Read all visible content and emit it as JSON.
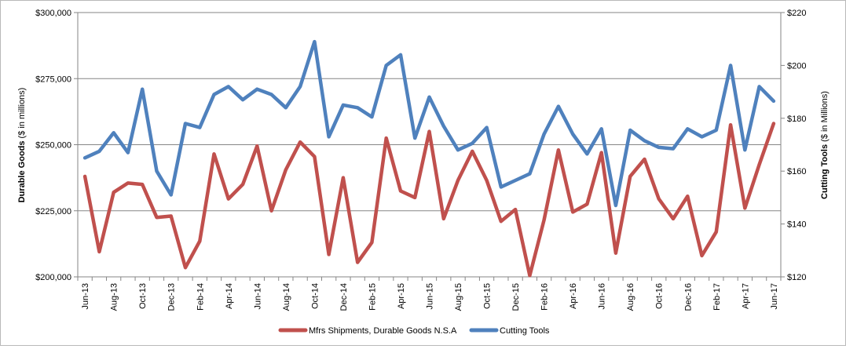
{
  "chart_data": {
    "type": "line",
    "categories": [
      "Jun-13",
      "Jul-13",
      "Aug-13",
      "Sep-13",
      "Oct-13",
      "Nov-13",
      "Dec-13",
      "Jan-14",
      "Feb-14",
      "Mar-14",
      "Apr-14",
      "May-14",
      "Jun-14",
      "Jul-14",
      "Aug-14",
      "Sep-14",
      "Oct-14",
      "Nov-14",
      "Dec-14",
      "Jan-15",
      "Feb-15",
      "Mar-15",
      "Apr-15",
      "May-15",
      "Jun-15",
      "Jul-15",
      "Aug-15",
      "Sep-15",
      "Oct-15",
      "Nov-15",
      "Dec-15",
      "Jan-16",
      "Feb-16",
      "Mar-16",
      "Apr-16",
      "May-16",
      "Jun-16",
      "Jul-16",
      "Aug-16",
      "Sep-16",
      "Oct-16",
      "Nov-16",
      "Dec-16",
      "Jan-17",
      "Feb-17",
      "Mar-17",
      "Apr-17",
      "May-17",
      "Jun-17"
    ],
    "x_tick_labels": [
      "Jun-13",
      "Aug-13",
      "Oct-13",
      "Dec-13",
      "Feb-14",
      "Apr-14",
      "Jun-14",
      "Aug-14",
      "Oct-14",
      "Dec-14",
      "Feb-15",
      "Apr-15",
      "Jun-15",
      "Aug-15",
      "Oct-15",
      "Dec-15",
      "Feb-16",
      "Apr-16",
      "Jun-16",
      "Aug-16",
      "Oct-16",
      "Dec-16",
      "Feb-17",
      "Apr-17",
      "Jun-17"
    ],
    "series": [
      {
        "name": "Mfrs Shipments, Durable Goods N.S.A",
        "axis": "left",
        "color": "#c0504d",
        "values": [
          238000,
          209500,
          232000,
          235500,
          235000,
          222500,
          223000,
          203500,
          213500,
          246500,
          229500,
          235000,
          249500,
          225000,
          240500,
          251000,
          245500,
          208500,
          237500,
          205500,
          213000,
          252500,
          232500,
          230000,
          255000,
          222000,
          236500,
          247500,
          236500,
          221000,
          225500,
          200500,
          221500,
          248000,
          224500,
          227500,
          247000,
          209000,
          238000,
          244500,
          229500,
          222000,
          230500,
          208000,
          217000,
          257500,
          226000,
          242500,
          258000
        ]
      },
      {
        "name": "Cutting Tools",
        "axis": "right",
        "color": "#4f81bd",
        "values": [
          165,
          167.5,
          174.5,
          167,
          191,
          160,
          151,
          178,
          176.5,
          189,
          192,
          187,
          191,
          189,
          184,
          192,
          209,
          173,
          185,
          184,
          180.5,
          200,
          204,
          172.5,
          188,
          177,
          168,
          170.5,
          176.5,
          154,
          156.5,
          159,
          174,
          184.5,
          174,
          166.5,
          176,
          147,
          175.5,
          171.5,
          169,
          168.5,
          176,
          173,
          175.5,
          200,
          168,
          192,
          186.5
        ]
      }
    ],
    "y_left": {
      "label": "Durable Goods",
      "unit": "($ in millions)",
      "lim": [
        200000,
        300000
      ],
      "ticks": [
        "$200,000",
        "$225,000",
        "$250,000",
        "$275,000",
        "$300,000"
      ]
    },
    "y_right": {
      "label": "Cutting Tools",
      "unit": "($ in Millions)",
      "lim": [
        120,
        220
      ],
      "ticks": [
        "$120",
        "$140",
        "$160",
        "$180",
        "$200",
        "$220"
      ]
    },
    "grid": true,
    "legend": "bottom-center"
  }
}
